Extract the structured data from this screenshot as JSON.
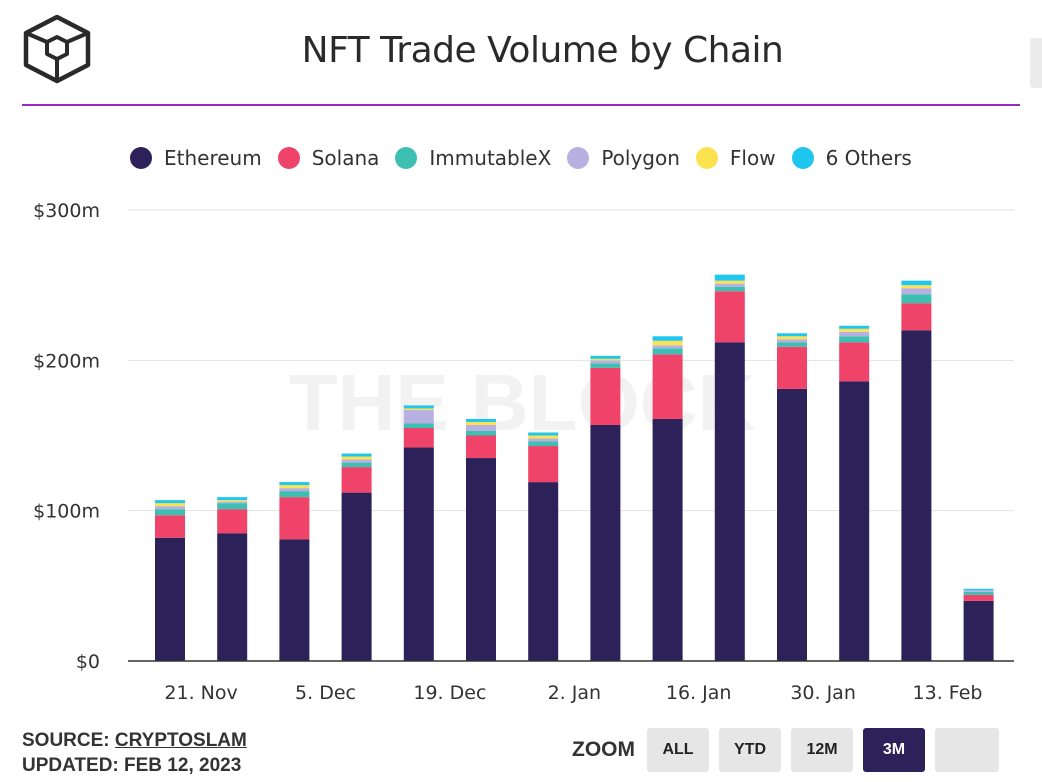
{
  "title": "NFT Trade Volume by Chain",
  "watermark": "THE BLOCK",
  "source_label": "SOURCE:",
  "source_name": "CRYPTOSLAM",
  "updated": "UPDATED: FEB 12, 2023",
  "zoom": {
    "label": "ZOOM",
    "buttons": [
      "ALL",
      "YTD",
      "12M",
      "3M",
      ""
    ],
    "active": "3M"
  },
  "colors": {
    "accent_rule": "#9b2bc0",
    "active_button": "#2d2159"
  },
  "chart_data": {
    "type": "bar",
    "stacked": true,
    "title": "NFT Trade Volume by Chain",
    "ylim": [
      0,
      300
    ],
    "y_ticks": [
      "$0",
      "$100m",
      "$200m",
      "$300m"
    ],
    "y_tick_values": [
      0,
      100,
      200,
      300
    ],
    "x_tick_labels": [
      "21. Nov",
      "5. Dec",
      "19. Dec",
      "2. Jan",
      "16. Jan",
      "30. Jan",
      "13. Feb"
    ],
    "x_tick_after_bar": [
      0,
      2,
      4,
      6,
      8,
      10,
      12
    ],
    "legend_position": "top",
    "series": [
      {
        "name": "Ethereum",
        "color": "#2c2158",
        "values": [
          82,
          85,
          81,
          112,
          142,
          135,
          119,
          157,
          161,
          212,
          181,
          186,
          220,
          40
        ]
      },
      {
        "name": "Solana",
        "color": "#f0436a",
        "values": [
          15,
          16,
          28,
          17,
          13,
          15,
          24,
          38,
          43,
          34,
          28,
          26,
          18,
          4
        ]
      },
      {
        "name": "ImmutableX",
        "color": "#3dbfb1",
        "values": [
          4,
          4,
          4,
          3,
          3,
          3,
          3,
          3,
          4,
          3,
          3,
          4,
          6,
          2
        ]
      },
      {
        "name": "Polygon",
        "color": "#b9b0e2",
        "values": [
          2,
          1,
          2,
          2,
          9,
          4,
          2,
          2,
          2,
          2,
          2,
          3,
          4,
          1
        ]
      },
      {
        "name": "Flow",
        "color": "#fde24f",
        "values": [
          2,
          1,
          2,
          2,
          1,
          2,
          2,
          1,
          3,
          2,
          2,
          2,
          2,
          0
        ]
      },
      {
        "name": "6 Others",
        "color": "#1ec6f0",
        "values": [
          2,
          2,
          2,
          2,
          2,
          2,
          2,
          2,
          3,
          4,
          2,
          2,
          3,
          1
        ]
      }
    ]
  }
}
